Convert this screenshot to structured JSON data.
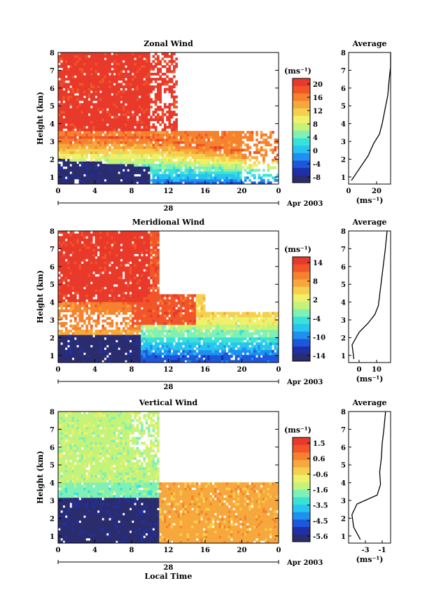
{
  "colors": {
    "palette": [
      "#2b2c6e",
      "#1f2fa8",
      "#1d57dc",
      "#1f8ff0",
      "#27c4f0",
      "#39e2d6",
      "#7ff0b6",
      "#c4f37a",
      "#f0f06a",
      "#f5d04e",
      "#f7a83c",
      "#f6822e",
      "#f2552a",
      "#e8392a"
    ]
  },
  "panels": [
    {
      "title": "Zonal Wind",
      "ylabel": "Height (km)",
      "yticks": [
        "1",
        "2",
        "3",
        "4",
        "5",
        "6",
        "7",
        "8"
      ],
      "xticks": [
        "0",
        "4",
        "8",
        "12",
        "16",
        "20",
        "0"
      ],
      "date_day": "28",
      "date_label": "Apr 2003",
      "xlabel": "",
      "colorbar_unit": "(ms⁻¹)",
      "colorbar_ticks": [
        "20",
        "16",
        "12",
        "8",
        "4",
        "0",
        "-4",
        "-8"
      ],
      "avg_title": "Average",
      "avg_xticks": [
        "0",
        "20"
      ],
      "avg_unit": "(ms⁻¹)"
    },
    {
      "title": "Meridional Wind",
      "ylabel": "Height (km)",
      "yticks": [
        "1",
        "2",
        "3",
        "4",
        "5",
        "6",
        "7",
        "8"
      ],
      "xticks": [
        "0",
        "4",
        "8",
        "12",
        "16",
        "20",
        "0"
      ],
      "date_day": "28",
      "date_label": "Apr 2003",
      "xlabel": "",
      "colorbar_unit": "(ms⁻¹)",
      "colorbar_ticks": [
        "14",
        "8",
        "2",
        "-4",
        "-10",
        "-14"
      ],
      "avg_title": "Average",
      "avg_xticks": [
        "0",
        "10"
      ],
      "avg_unit": "(ms⁻¹)"
    },
    {
      "title": "Vertical Wind",
      "ylabel": "Height (km)",
      "yticks": [
        "1",
        "2",
        "3",
        "4",
        "5",
        "6",
        "7",
        "8"
      ],
      "xticks": [
        "0",
        "4",
        "8",
        "12",
        "16",
        "20",
        "0"
      ],
      "date_day": "28",
      "date_label": "Apr 2003",
      "xlabel": "Local Time",
      "colorbar_unit": "(ms⁻¹)",
      "colorbar_ticks": [
        "1.5",
        "0.6",
        "-0.6",
        "-1.6",
        "-3.5",
        "-4.5",
        "-5.6"
      ],
      "avg_title": "Average",
      "avg_xticks": [
        "-3",
        "-1"
      ],
      "avg_unit": "(ms⁻¹)"
    }
  ],
  "chart_data": [
    {
      "type": "heatmap",
      "title": "Zonal Wind",
      "ylabel": "Height (km)",
      "x_range_hours": [
        0,
        24
      ],
      "y_range_km": [
        0.6,
        8
      ],
      "colorbar_range": [
        -10,
        22
      ],
      "profile": {
        "title": "Average",
        "xlim": [
          0,
          30
        ],
        "x": [
          2,
          8,
          14,
          18,
          22,
          24,
          26,
          28,
          29,
          30,
          30
        ],
        "y": [
          0.8,
          1.5,
          2.2,
          2.9,
          3.4,
          4.0,
          4.8,
          5.6,
          6.5,
          7.2,
          8.0
        ]
      }
    },
    {
      "type": "heatmap",
      "title": "Meridional Wind",
      "ylabel": "Height (km)",
      "x_range_hours": [
        0,
        24
      ],
      "y_range_km": [
        0.6,
        8
      ],
      "colorbar_range": [
        -16,
        16
      ],
      "profile": {
        "title": "Average",
        "xlim": [
          -6,
          18
        ],
        "x": [
          -3,
          -4,
          0,
          5,
          9,
          11,
          12,
          13,
          14,
          15,
          16
        ],
        "y": [
          0.8,
          1.6,
          2.3,
          2.8,
          3.3,
          3.8,
          4.6,
          5.4,
          6.2,
          7.0,
          8.0
        ]
      }
    },
    {
      "type": "heatmap",
      "title": "Vertical Wind",
      "ylabel": "Height (km)",
      "xlabel": "Local Time",
      "x_range_hours": [
        0,
        24
      ],
      "y_range_km": [
        0.6,
        8
      ],
      "colorbar_range": [
        -6,
        2
      ],
      "profile": {
        "title": "Average",
        "xlim": [
          -5,
          0
        ],
        "x": [
          -3.6,
          -4.4,
          -4.6,
          -4.0,
          -1.6,
          -1.2,
          -1.3,
          -1.1,
          -1.0,
          -0.8,
          -0.6
        ],
        "y": [
          0.8,
          1.5,
          2.2,
          2.8,
          3.3,
          3.9,
          4.6,
          5.4,
          6.2,
          7.0,
          8.0
        ]
      }
    }
  ]
}
